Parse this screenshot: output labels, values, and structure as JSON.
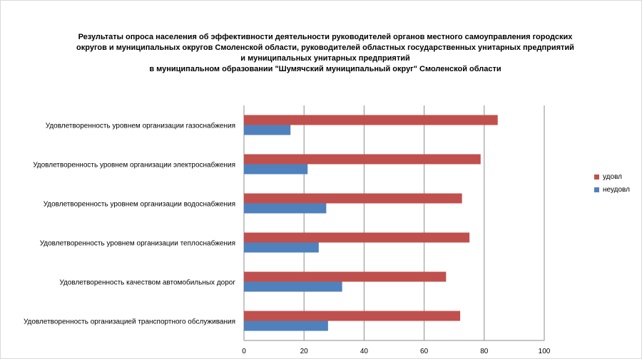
{
  "chart_data": {
    "type": "bar",
    "orientation": "horizontal",
    "title_lines": [
      "Результаты опроса населения об эффективности деятельности руководителей органов местного самоуправления городских",
      "округов и муниципальных округов Смоленской области, руководителей областных государственных унитарных предприятий",
      "и муниципальных унитарных предприятий",
      "в муниципальном образовании \"Шумячский муниципальный округ\" Смоленской области"
    ],
    "categories": [
      "Удовлетворенность уровнем организации газоснабжения",
      "Удовлетворенность уровнем организации электроснабжения",
      "Удовлетворенность уровнем организации водоснабжения",
      "Удовлетворенность уровнем организации теплоснабжения",
      "Удовлетворенность качеством автомобильных дорог",
      "Удовлетворенность организацией транспортного обслуживания"
    ],
    "series": [
      {
        "name": "удовл",
        "color": "#c0504d",
        "values": [
          84.5,
          78.8,
          72.6,
          75.1,
          67.3,
          72.0
        ]
      },
      {
        "name": "неудовл",
        "color": "#4f81bd",
        "values": [
          15.5,
          21.2,
          27.4,
          24.9,
          32.7,
          28.0
        ]
      }
    ],
    "xlim": [
      0,
      100
    ],
    "xticks": [
      "0",
      "20",
      "40",
      "60",
      "80",
      "100"
    ],
    "grid": true,
    "legend_position": "right"
  }
}
